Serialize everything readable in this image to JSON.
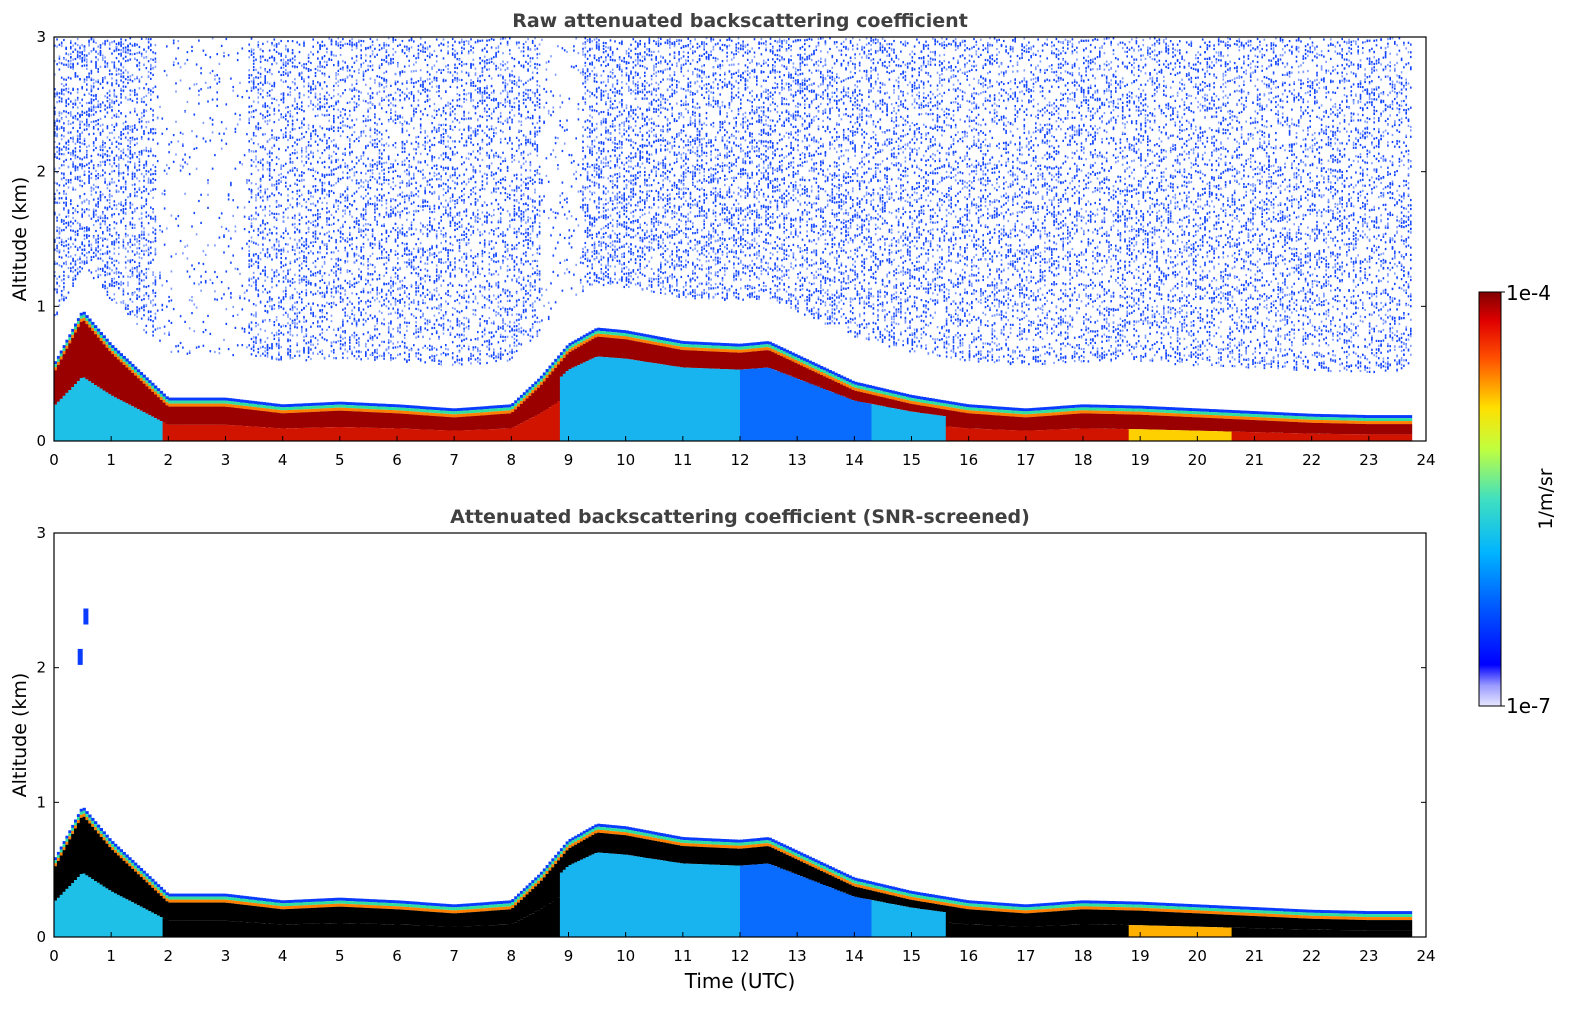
{
  "colors": {
    "colormap": "jet",
    "high_saturation": "#000000",
    "background": "#ffffff"
  },
  "colorbar": {
    "max_label": "1e-4",
    "min_label": "1e-7",
    "unit_label": "1/m/sr",
    "scale": "log",
    "range": [
      1e-07,
      0.0001
    ]
  },
  "xlabel": "Time (UTC)",
  "chart_data": [
    {
      "type": "heatmap",
      "title": "Raw attenuated backscattering coefficient",
      "xlabel": "",
      "ylabel": "Altitude (km)",
      "xlim": [
        0,
        24
      ],
      "ylim": [
        0,
        3
      ],
      "xticks": [
        "0",
        "1",
        "2",
        "3",
        "4",
        "5",
        "6",
        "7",
        "8",
        "9",
        "10",
        "11",
        "12",
        "13",
        "14",
        "15",
        "16",
        "17",
        "18",
        "19",
        "20",
        "21",
        "22",
        "23",
        "24"
      ],
      "yticks": [
        "0",
        "1",
        "2",
        "3"
      ],
      "noise_above_layer": true,
      "screened": false,
      "layer_top_km": {
        "x": [
          0,
          0.5,
          1,
          1.5,
          2,
          3,
          4,
          5,
          6,
          7,
          8,
          8.5,
          9,
          9.5,
          10,
          11,
          12,
          12.5,
          13,
          14,
          15,
          16,
          17,
          18,
          19,
          20,
          21,
          22,
          23,
          23.75
        ],
        "y": [
          0.55,
          0.95,
          0.7,
          0.5,
          0.3,
          0.3,
          0.25,
          0.27,
          0.25,
          0.22,
          0.25,
          0.45,
          0.7,
          0.82,
          0.8,
          0.72,
          0.7,
          0.72,
          0.62,
          0.42,
          0.32,
          0.25,
          0.22,
          0.25,
          0.24,
          0.22,
          0.2,
          0.18,
          0.17,
          0.17
        ]
      }
    },
    {
      "type": "heatmap",
      "title": "Attenuated backscattering coefficient (SNR-screened)",
      "xlabel": "Time (UTC)",
      "ylabel": "Altitude (km)",
      "xlim": [
        0,
        24
      ],
      "ylim": [
        0,
        3
      ],
      "xticks": [
        "0",
        "1",
        "2",
        "3",
        "4",
        "5",
        "6",
        "7",
        "8",
        "9",
        "10",
        "11",
        "12",
        "13",
        "14",
        "15",
        "16",
        "17",
        "18",
        "19",
        "20",
        "21",
        "22",
        "23",
        "24"
      ],
      "yticks": [
        "0",
        "1",
        "2",
        "3"
      ],
      "noise_above_layer": false,
      "screened": true,
      "isolated_features_km": [
        {
          "x": 0.55,
          "y": 2.38
        },
        {
          "x": 0.45,
          "y": 2.08
        }
      ],
      "layer_top_km": {
        "x": [
          0,
          0.5,
          1,
          1.5,
          2,
          3,
          4,
          5,
          6,
          7,
          8,
          8.5,
          9,
          9.5,
          10,
          11,
          12,
          12.5,
          13,
          14,
          15,
          16,
          17,
          18,
          19,
          20,
          21,
          22,
          23,
          23.75
        ],
        "y": [
          0.55,
          0.95,
          0.7,
          0.5,
          0.3,
          0.3,
          0.25,
          0.27,
          0.25,
          0.22,
          0.25,
          0.45,
          0.7,
          0.82,
          0.8,
          0.72,
          0.7,
          0.72,
          0.62,
          0.42,
          0.32,
          0.25,
          0.22,
          0.25,
          0.24,
          0.22,
          0.2,
          0.18,
          0.17,
          0.17
        ]
      }
    }
  ]
}
